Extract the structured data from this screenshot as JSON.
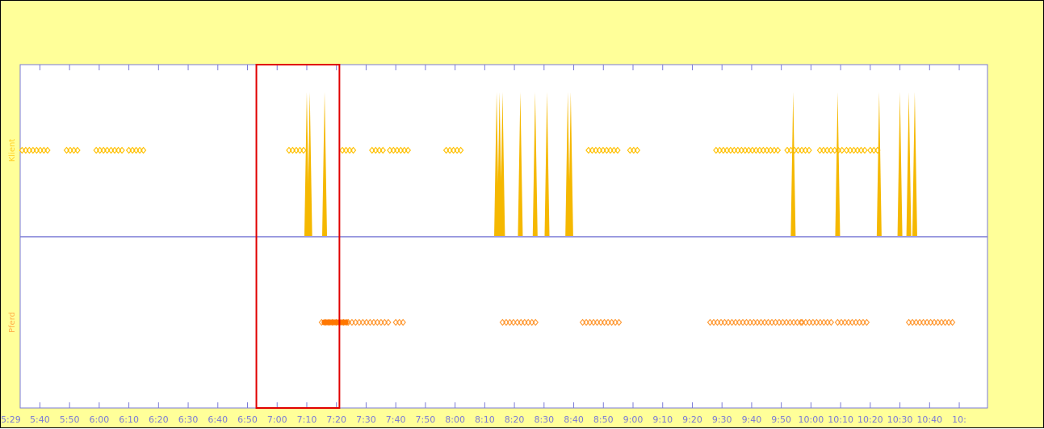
{
  "chart_data": {
    "type": "scatter",
    "x_axis": {
      "range": [
        "5:29",
        "10:45"
      ],
      "tick_labels": [
        "5:29",
        "5:40",
        "5:50",
        "6:00",
        "6:10",
        "6:20",
        "6:30",
        "6:40",
        "6:50",
        "7:00",
        "7:10",
        "7:20",
        "7:30",
        "7:40",
        "7:50",
        "8:00",
        "8:10",
        "8:20",
        "8:30",
        "8:40",
        "8:50",
        "9:00",
        "9:10",
        "9:20",
        "9:30",
        "9:40",
        "9:50",
        "10:00",
        "10:10",
        "10:20",
        "10:30",
        "10:40",
        "10:"
      ]
    },
    "lanes": [
      {
        "label": "Klient",
        "color": "#ffc000",
        "spike_color": "#f5b800",
        "event_segments": [
          [
            "5:34",
            "5:43"
          ],
          [
            "5:49",
            "5:53"
          ],
          [
            "5:59",
            "6:03"
          ],
          [
            "6:04",
            "6:08"
          ],
          [
            "6:10",
            "6:16"
          ],
          [
            "7:04",
            "7:09"
          ],
          [
            "7:22",
            "7:26"
          ],
          [
            "7:32",
            "7:36"
          ],
          [
            "7:38",
            "7:45"
          ],
          [
            "7:57",
            "8:02"
          ],
          [
            "8:45",
            "8:56"
          ],
          [
            "8:59",
            "9:02"
          ],
          [
            "9:28",
            "9:49"
          ],
          [
            "9:52",
            "10:00"
          ],
          [
            "10:03",
            "10:07"
          ],
          [
            "10:08",
            "10:11"
          ],
          [
            "10:12",
            "10:19"
          ],
          [
            "10:20",
            "10:23"
          ]
        ],
        "spikes": [
          "7:10",
          "7:11",
          "7:16",
          "8:14",
          "8:15",
          "8:16",
          "8:22",
          "8:27",
          "8:31",
          "8:38",
          "8:39",
          "9:54",
          "10:09",
          "10:23",
          "10:30",
          "10:33",
          "10:35"
        ]
      },
      {
        "label": "Pferd",
        "color": "#ff9933",
        "dense_color": "#ff7700",
        "event_segments": [
          [
            "7:15",
            "7:24"
          ],
          [
            "7:24",
            "7:38"
          ],
          [
            "7:40",
            "7:43"
          ],
          [
            "8:16",
            "8:20"
          ],
          [
            "8:21",
            "8:28"
          ],
          [
            "8:43",
            "8:56"
          ],
          [
            "9:26",
            "9:57"
          ],
          [
            "9:57",
            "10:07"
          ],
          [
            "10:09",
            "10:19"
          ],
          [
            "10:33",
            "10:48"
          ]
        ],
        "dense_segments": [
          [
            "7:15",
            "7:24"
          ]
        ]
      }
    ],
    "selection": {
      "range": [
        "6:53",
        "7:21"
      ],
      "color": "#e00000"
    },
    "axis_color": "#7a7ad6",
    "plot_bg": "#ffffff",
    "frame_bg": "#ffff99"
  }
}
